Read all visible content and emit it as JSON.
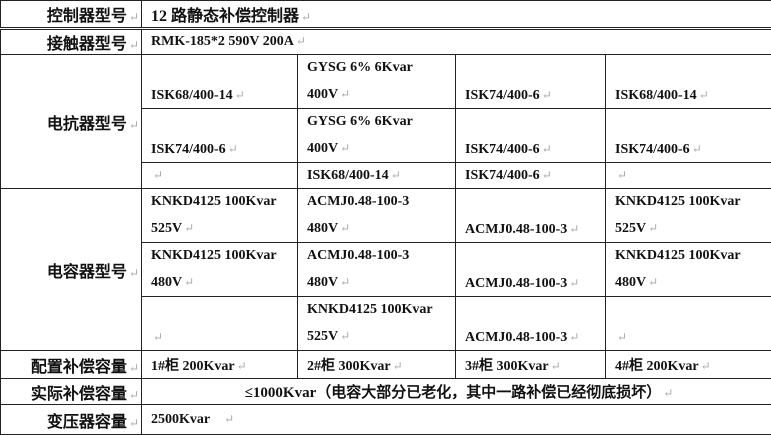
{
  "rows": {
    "controller": {
      "label": "控制器型号",
      "value": "12 路静态补偿控制器"
    },
    "contactor": {
      "label": "接触器型号",
      "value": "RMK-185*2  590V 200A"
    },
    "reactor": {
      "label": "电抗器型号",
      "cells": [
        [
          "ISK68/400-14",
          "GYSG  6%  6Kvar|400V",
          "ISK74/400-6",
          "ISK68/400-14"
        ],
        [
          "ISK74/400-6",
          "GYSG  6%  6Kvar|400V",
          "ISK74/400-6",
          "ISK74/400-6"
        ],
        [
          "",
          "ISK68/400-14",
          "ISK74/400-6",
          ""
        ]
      ]
    },
    "capacitor": {
      "label": "电容器型号",
      "cells": [
        [
          "KNKD4125 100Kvar|525V",
          "ACMJ0.48-100-3|480V",
          "ACMJ0.48-100-3",
          "KNKD4125 100Kvar|525V"
        ],
        [
          "KNKD4125 100Kvar|480V",
          "ACMJ0.48-100-3|480V",
          "ACMJ0.48-100-3",
          "KNKD4125 100Kvar|480V"
        ],
        [
          "",
          "KNKD4125 100Kvar|525V",
          "ACMJ0.48-100-3",
          ""
        ]
      ]
    },
    "config": {
      "label": "配置补偿容量",
      "cells": [
        "1#柜 200Kvar",
        "2#柜 300Kvar",
        "3#柜 300Kvar",
        "4#柜 200Kvar"
      ]
    },
    "actual": {
      "label": "实际补偿容量",
      "value": "≤1000Kvar（电容大部分已老化，其中一路补偿已经彻底损坏）"
    },
    "transformer": {
      "label": "变压器容量",
      "value": "2500Kvar"
    }
  }
}
